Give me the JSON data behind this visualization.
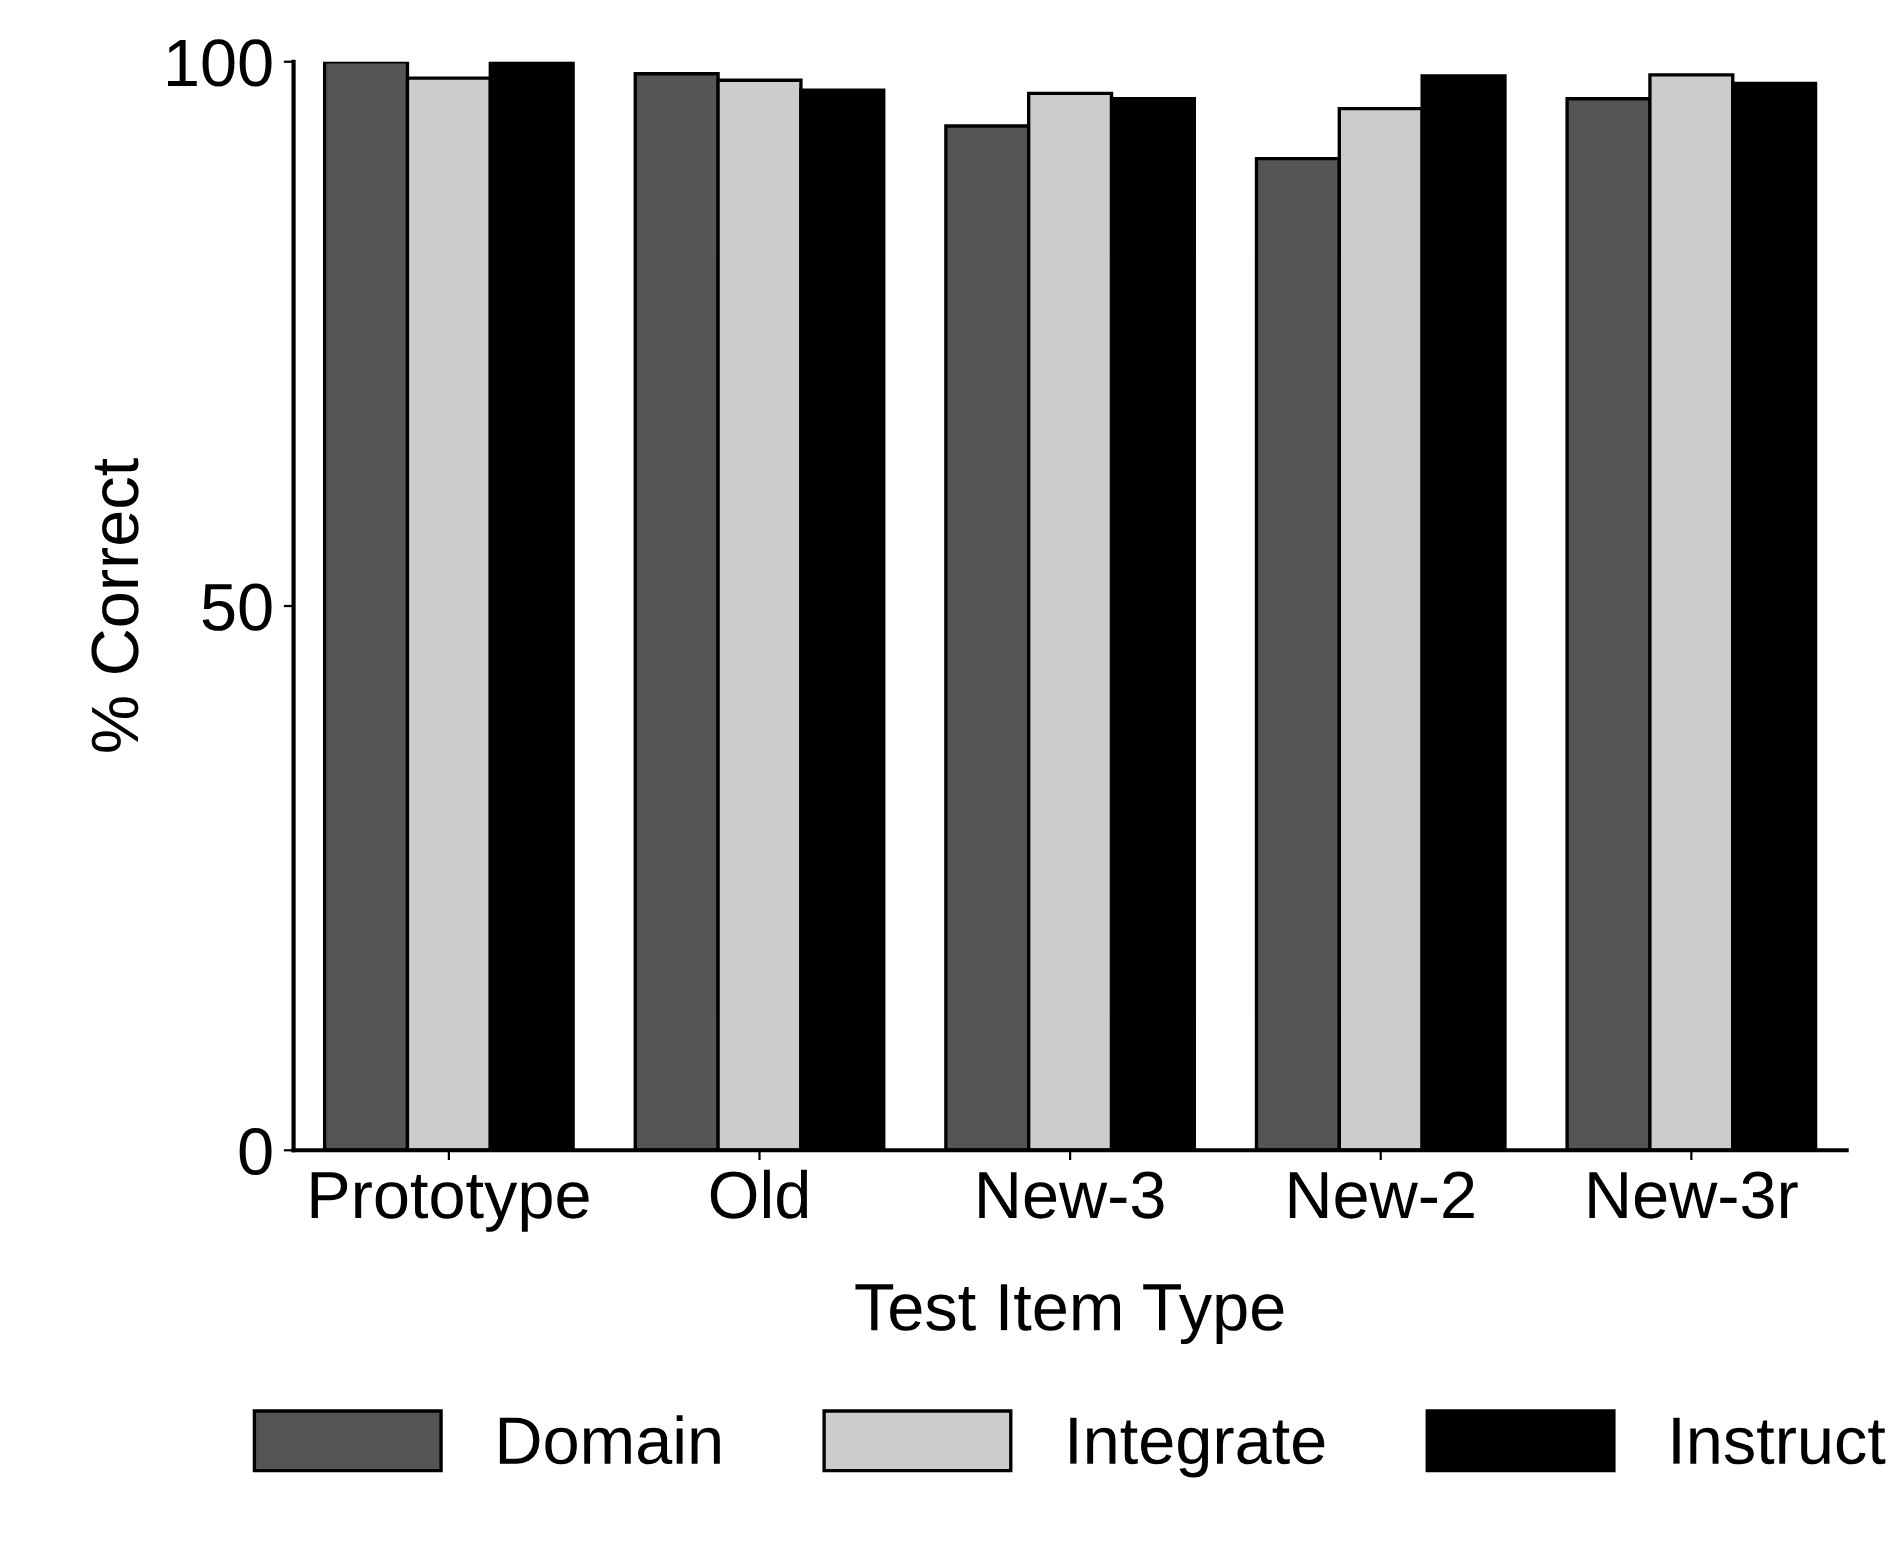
{
  "chart_data": {
    "type": "bar",
    "xlabel": "Test Item Type",
    "ylabel": "% Correct",
    "categories": [
      "Prototype",
      "Old",
      "New-3",
      "New-2",
      "New-3r"
    ],
    "series": [
      {
        "name": "Domain",
        "color": "#555555",
        "values": [
          100,
          98.9,
          94.1,
          91.1,
          96.6
        ]
      },
      {
        "name": "Integrate",
        "color": "#cccccc",
        "values": [
          98.5,
          98.3,
          97.1,
          95.7,
          98.8
        ]
      },
      {
        "name": "Instruct",
        "color": "#000000",
        "values": [
          100,
          97.4,
          96.6,
          98.7,
          98.0
        ]
      }
    ],
    "ylim": [
      0,
      100
    ],
    "yticks": [
      0,
      50,
      100
    ],
    "grid": false,
    "legend": "bottom"
  }
}
